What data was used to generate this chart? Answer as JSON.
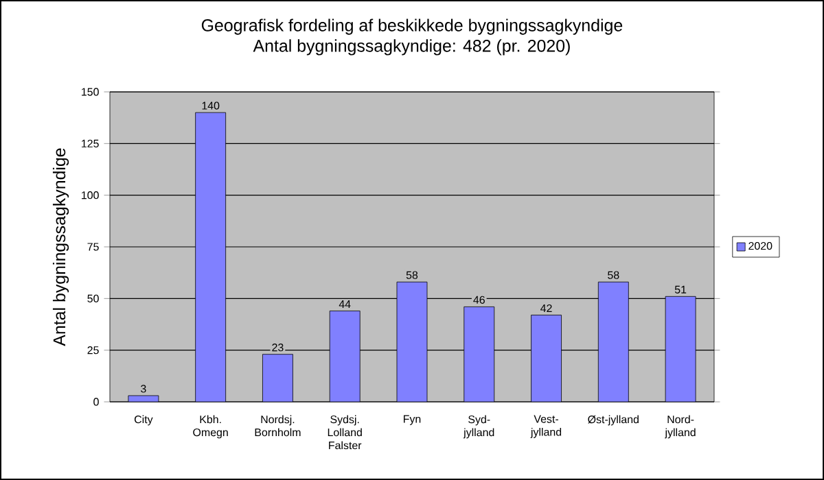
{
  "chart_data": {
    "type": "bar",
    "title": "Geografisk fordeling af beskikkede bygningssagkyndige",
    "subtitle": "Antal bygningssagkyndige: 482 (pr. 2020)",
    "ylabel": "Antal bygningssagkyndige",
    "categories": [
      "City",
      "Kbh. Omegn",
      "Nordsj. Bornholm",
      "Sydsj. Lolland Falster",
      "Fyn",
      "Syd-jylland",
      "Vest-jylland",
      "Øst-jylland",
      "Nord-jylland"
    ],
    "series": [
      {
        "name": "2020",
        "color": "#8080ff",
        "values": [
          3,
          140,
          23,
          44,
          58,
          46,
          42,
          58,
          51
        ]
      }
    ],
    "ylim": [
      0,
      150
    ],
    "yticks": [
      0,
      25,
      50,
      75,
      100,
      125,
      150
    ],
    "grid": "y",
    "legend": "right",
    "data_labels": true
  }
}
